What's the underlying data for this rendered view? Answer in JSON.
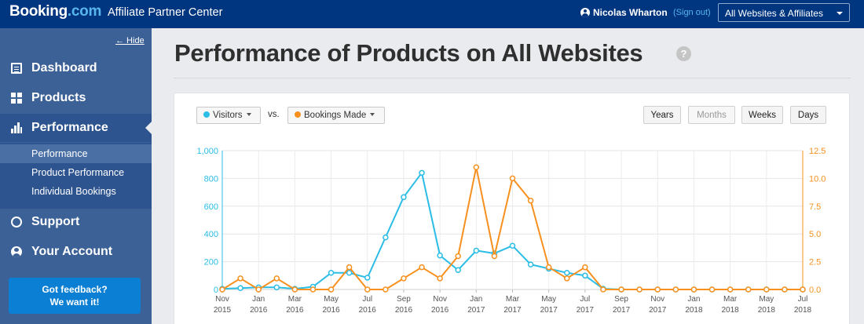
{
  "header": {
    "logo_main": "Booking",
    "logo_suffix": ".com",
    "app_title": "Affiliate Partner Center",
    "user_name": "Nicolas Wharton",
    "sign_out": "(Sign out)",
    "site_selector": "All Websites & Affiliates",
    "background_color": "#003580"
  },
  "sidebar": {
    "hide_label": "← Hide",
    "items": [
      {
        "label": "Dashboard",
        "icon": "document-icon"
      },
      {
        "label": "Products",
        "icon": "grid-icon"
      },
      {
        "label": "Performance",
        "icon": "bar-chart-icon"
      },
      {
        "label": "Support",
        "icon": "chat-bubble-icon"
      },
      {
        "label": "Your Account",
        "icon": "user-icon"
      }
    ],
    "subitems": [
      "Performance",
      "Product Performance",
      "Individual Bookings"
    ],
    "feedback_line1": "Got feedback?",
    "feedback_line2": "We want it!"
  },
  "main": {
    "title": "Performance of Products on All Websites",
    "help": "?",
    "metric_left": "Visitors",
    "vs": "vs.",
    "metric_right": "Bookings Made",
    "ranges": [
      "Years",
      "Months",
      "Weeks",
      "Days"
    ],
    "selected_range": "Months"
  },
  "chart_data": {
    "type": "line",
    "x": [
      "Nov 2015",
      "Dec 2015",
      "Jan 2016",
      "Feb 2016",
      "Mar 2016",
      "Apr 2016",
      "May 2016",
      "Jun 2016",
      "Jul 2016",
      "Aug 2016",
      "Sep 2016",
      "Oct 2016",
      "Nov 2016",
      "Dec 2016",
      "Jan 2017",
      "Feb 2017",
      "Mar 2017",
      "Apr 2017",
      "May 2017",
      "Jun 2017",
      "Jul 2017",
      "Aug 2017",
      "Sep 2017",
      "Oct 2017",
      "Nov 2017",
      "Dec 2017",
      "Jan 2018",
      "Feb 2018",
      "Mar 2018",
      "Apr 2018",
      "May 2018",
      "Jun 2018",
      "Jul 2018"
    ],
    "tick_labels": [
      {
        "month": "Nov",
        "year": "2015"
      },
      {
        "month": "Jan",
        "year": "2016"
      },
      {
        "month": "Mar",
        "year": "2016"
      },
      {
        "month": "May",
        "year": "2016"
      },
      {
        "month": "Jul",
        "year": "2016"
      },
      {
        "month": "Sep",
        "year": "2016"
      },
      {
        "month": "Nov",
        "year": "2016"
      },
      {
        "month": "Jan",
        "year": "2017"
      },
      {
        "month": "Mar",
        "year": "2017"
      },
      {
        "month": "May",
        "year": "2017"
      },
      {
        "month": "Jul",
        "year": "2017"
      },
      {
        "month": "Sep",
        "year": "2017"
      },
      {
        "month": "Nov",
        "year": "2017"
      },
      {
        "month": "Jan",
        "year": "2018"
      },
      {
        "month": "Mar",
        "year": "2018"
      },
      {
        "month": "May",
        "year": "2018"
      },
      {
        "month": "Jul",
        "year": "2018"
      }
    ],
    "series": [
      {
        "name": "Visitors",
        "axis": "left",
        "color": "#2bbde6",
        "values": [
          5,
          10,
          15,
          15,
          5,
          20,
          120,
          120,
          85,
          375,
          665,
          840,
          245,
          140,
          280,
          260,
          315,
          180,
          150,
          120,
          100,
          5,
          0,
          0,
          0,
          0,
          0,
          0,
          0,
          0,
          0,
          0,
          0
        ]
      },
      {
        "name": "Bookings Made",
        "axis": "right",
        "color": "#f7901e",
        "values": [
          0,
          1,
          0,
          1,
          0,
          0,
          0,
          2,
          0,
          0,
          1,
          2,
          1,
          3,
          11,
          3,
          10,
          8,
          2,
          1,
          2,
          0,
          0,
          0,
          0,
          0,
          0,
          0,
          0,
          0,
          0,
          0,
          0
        ]
      }
    ],
    "y_left": {
      "ticks": [
        "0",
        "200",
        "400",
        "600",
        "800",
        "1,000"
      ],
      "range": [
        0,
        1000
      ],
      "color": "#2bbde6"
    },
    "y_right": {
      "ticks": [
        "0.0",
        "2.5",
        "5.0",
        "7.5",
        "10.0",
        "12.5"
      ],
      "range": [
        0,
        12.5
      ],
      "color": "#f7901e"
    },
    "grid": true
  }
}
